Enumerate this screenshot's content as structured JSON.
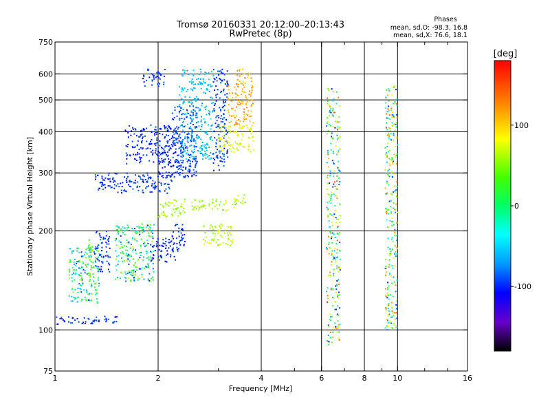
{
  "header": {
    "title_line1": "Tromsø 20160331 20:12:00–20:13:43",
    "title_line2": "RwPretec (8p)",
    "stats_title": "Phases",
    "stats_o": "mean, sd,O: -98.3, 16.8",
    "stats_x": "mean, sd,X: 76.6, 18.1"
  },
  "colorbar": {
    "unit": "[deg]",
    "ticks": [
      {
        "value": 100,
        "label": "100"
      },
      {
        "value": 0,
        "label": "0"
      },
      {
        "value": -100,
        "label": "-100"
      }
    ],
    "range": [
      -180,
      180
    ]
  },
  "chart_data": {
    "type": "scatter",
    "title": "Tromsø 20160331 20:12:00–20:13:43",
    "subtitle": "RwPretec (8p)",
    "xlabel": "Frequency [MHz]",
    "ylabel": "Stationary phase Virtual Height [km]",
    "xscale": "log",
    "yscale": "log",
    "xlim": [
      1,
      16
    ],
    "ylim": [
      75,
      750
    ],
    "xticks": [
      {
        "value": 1,
        "label": "1"
      },
      {
        "value": 2,
        "label": "2"
      },
      {
        "value": 4,
        "label": "4"
      },
      {
        "value": 6,
        "label": "6"
      },
      {
        "value": 8,
        "label": "8"
      },
      {
        "value": 10,
        "label": "10"
      },
      {
        "value": 16,
        "label": "16"
      }
    ],
    "x_gridlines": [
      2,
      4,
      6,
      8,
      10
    ],
    "x_minor_ticks": [
      3,
      5,
      7,
      9,
      12,
      14
    ],
    "yticks": [
      {
        "value": 75,
        "label": "75"
      },
      {
        "value": 100,
        "label": "100"
      },
      {
        "value": 200,
        "label": "200"
      },
      {
        "value": 300,
        "label": "300"
      },
      {
        "value": 400,
        "label": "400"
      },
      {
        "value": 500,
        "label": "500"
      },
      {
        "value": 600,
        "label": "600"
      },
      {
        "value": 750,
        "label": "750"
      }
    ],
    "y_gridlines": [
      100,
      200,
      300,
      400,
      500,
      600
    ],
    "grid": true,
    "color_value": "phase [deg]",
    "clusters": [
      {
        "x": [
          1.0,
          1.55
        ],
        "y": [
          104,
          110
        ],
        "phase": [
          -110,
          -85
        ]
      },
      {
        "x": [
          1.1,
          1.35
        ],
        "y": [
          120,
          180
        ],
        "phase": [
          -100,
          60
        ]
      },
      {
        "x": [
          1.25,
          1.3
        ],
        "y": [
          140,
          190
        ],
        "phase": [
          20,
          60
        ]
      },
      {
        "x": [
          1.3,
          1.45
        ],
        "y": [
          150,
          200
        ],
        "phase": [
          -110,
          -80
        ]
      },
      {
        "x": [
          1.5,
          1.95
        ],
        "y": [
          140,
          210
        ],
        "phase": [
          -105,
          70
        ]
      },
      {
        "x": [
          1.9,
          2.3
        ],
        "y": [
          160,
          190
        ],
        "phase": [
          -110,
          -90
        ]
      },
      {
        "x": [
          2.2,
          2.4
        ],
        "y": [
          175,
          210
        ],
        "phase": [
          -110,
          -90
        ]
      },
      {
        "x": [
          2.0,
          2.4
        ],
        "y": [
          220,
          250
        ],
        "phase": [
          40,
          80
        ]
      },
      {
        "x": [
          2.5,
          3.2
        ],
        "y": [
          230,
          250
        ],
        "phase": [
          40,
          80
        ]
      },
      {
        "x": [
          2.7,
          3.3
        ],
        "y": [
          180,
          210
        ],
        "phase": [
          50,
          80
        ]
      },
      {
        "x": [
          3.3,
          3.6
        ],
        "y": [
          235,
          260
        ],
        "phase": [
          40,
          80
        ]
      },
      {
        "x": [
          1.3,
          2.2
        ],
        "y": [
          260,
          300
        ],
        "phase": [
          -110,
          -85
        ]
      },
      {
        "x": [
          2.0,
          2.6
        ],
        "y": [
          290,
          330
        ],
        "phase": [
          -110,
          -90
        ]
      },
      {
        "x": [
          1.6,
          2.3
        ],
        "y": [
          320,
          420
        ],
        "phase": [
          -110,
          -90
        ]
      },
      {
        "x": [
          1.8,
          2.1
        ],
        "y": [
          550,
          620
        ],
        "phase": [
          -110,
          -85
        ]
      },
      {
        "x": [
          2.3,
          2.9
        ],
        "y": [
          330,
          620
        ],
        "phase": [
          -75,
          -45
        ]
      },
      {
        "x": [
          2.2,
          2.6
        ],
        "y": [
          300,
          480
        ],
        "phase": [
          -100,
          -80
        ]
      },
      {
        "x": [
          2.9,
          3.2
        ],
        "y": [
          300,
          620
        ],
        "phase": [
          -105,
          -80
        ]
      },
      {
        "x": [
          3.0,
          3.8
        ],
        "y": [
          345,
          420
        ],
        "phase": [
          65,
          95
        ]
      },
      {
        "x": [
          3.2,
          3.8
        ],
        "y": [
          420,
          560
        ],
        "phase": [
          95,
          135
        ]
      },
      {
        "x": [
          3.4,
          3.8
        ],
        "y": [
          560,
          620
        ],
        "phase": [
          90,
          130
        ]
      },
      {
        "x": [
          6.2,
          6.8
        ],
        "y": [
          90,
          550
        ],
        "phase": [
          -110,
          150
        ]
      },
      {
        "x": [
          9.2,
          10.0
        ],
        "y": [
          100,
          550
        ],
        "phase": [
          -100,
          140
        ]
      }
    ]
  }
}
